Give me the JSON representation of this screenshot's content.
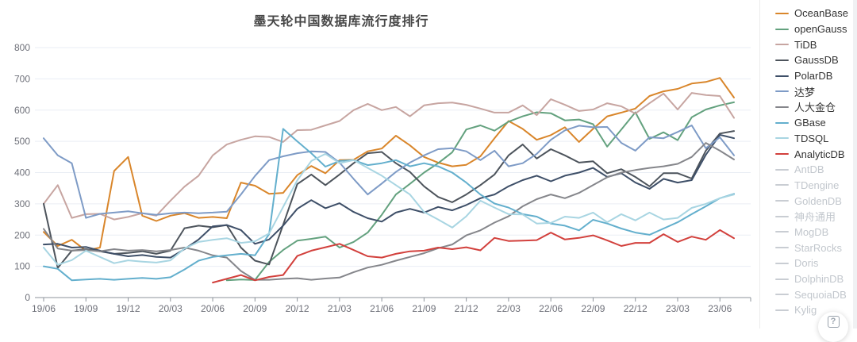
{
  "title": "墨天轮中国数据库流行度排行",
  "help_button": {
    "glyph": "?"
  },
  "colors": {
    "axis_label": "#6E7079",
    "axis_line": "#8d939b",
    "grid_line": "#e9edf4",
    "legend_active_text": "#333333",
    "legend_inactive": "#c9cdd3",
    "title_text": "#474747"
  },
  "chart_data": {
    "type": "line",
    "title": "墨天轮中国数据库流行度排行",
    "xlabel": "",
    "ylabel": "",
    "ylim": [
      0,
      800
    ],
    "y_ticks": [
      0,
      100,
      200,
      300,
      400,
      500,
      600,
      700,
      800
    ],
    "grid": true,
    "legend_position": "right",
    "x_tick_labels": [
      "19/06",
      "19/09",
      "19/12",
      "20/03",
      "20/06",
      "20/09",
      "20/12",
      "21/03",
      "21/06",
      "21/09",
      "21/12",
      "22/03",
      "22/06",
      "22/09",
      "22/12",
      "23/03",
      "23/06"
    ],
    "months": [
      "19/06",
      "19/07",
      "19/08",
      "19/09",
      "19/10",
      "19/11",
      "19/12",
      "20/01",
      "20/02",
      "20/03",
      "20/04",
      "20/05",
      "20/06",
      "20/07",
      "20/08",
      "20/09",
      "20/10",
      "20/11",
      "20/12",
      "21/01",
      "21/02",
      "21/03",
      "21/04",
      "21/05",
      "21/06",
      "21/07",
      "21/08",
      "21/09",
      "21/10",
      "21/11",
      "21/12",
      "22/01",
      "22/02",
      "22/03",
      "22/04",
      "22/05",
      "22/06",
      "22/07",
      "22/08",
      "22/09",
      "22/10",
      "22/11",
      "22/12",
      "23/01",
      "23/02",
      "23/03",
      "23/04",
      "23/05",
      "23/06",
      "23/07"
    ],
    "series": [
      {
        "name": "OceanBase",
        "color": "#d9862b",
        "active": true,
        "values": [
          210,
          165,
          185,
          150,
          160,
          405,
          450,
          262,
          245,
          262,
          270,
          255,
          258,
          254,
          368,
          358,
          332,
          335,
          392,
          421,
          398,
          440,
          441,
          468,
          477,
          518,
          487,
          450,
          432,
          420,
          425,
          452,
          510,
          565,
          540,
          505,
          520,
          545,
          498,
          540,
          580,
          592,
          605,
          645,
          660,
          668,
          685,
          690,
          703,
          640
        ]
      },
      {
        "name": "openGauss",
        "color": "#63a17e",
        "active": true,
        "values": [
          null,
          null,
          null,
          null,
          null,
          null,
          null,
          null,
          null,
          null,
          null,
          null,
          null,
          55,
          58,
          56,
          114,
          152,
          182,
          188,
          195,
          160,
          178,
          208,
          265,
          330,
          364,
          400,
          430,
          465,
          538,
          551,
          534,
          563,
          580,
          593,
          590,
          567,
          570,
          555,
          483,
          538,
          593,
          508,
          529,
          504,
          577,
          602,
          615,
          625
        ]
      },
      {
        "name": "TiDB",
        "color": "#c7a5a1",
        "active": true,
        "values": [
          300,
          360,
          255,
          267,
          268,
          250,
          258,
          270,
          262,
          310,
          355,
          390,
          455,
          490,
          505,
          516,
          514,
          498,
          536,
          537,
          551,
          565,
          600,
          620,
          600,
          610,
          580,
          615,
          622,
          624,
          617,
          605,
          592,
          592,
          615,
          584,
          635,
          617,
          597,
          602,
          622,
          612,
          589,
          622,
          653,
          602,
          655,
          648,
          645,
          575
        ]
      },
      {
        "name": "GaussDB",
        "color": "#4d545c",
        "active": true,
        "values": [
          300,
          95,
          150,
          155,
          148,
          140,
          143,
          148,
          140,
          150,
          222,
          230,
          225,
          232,
          160,
          118,
          106,
          233,
          363,
          394,
          360,
          394,
          430,
          462,
          466,
          430,
          402,
          356,
          322,
          305,
          330,
          360,
          394,
          455,
          490,
          445,
          475,
          455,
          432,
          436,
          398,
          411,
          386,
          356,
          398,
          398,
          381,
          470,
          525,
          533
        ]
      },
      {
        "name": "PolarDB",
        "color": "#3e4f68",
        "active": true,
        "values": [
          170,
          172,
          160,
          162,
          150,
          140,
          132,
          136,
          130,
          128,
          155,
          186,
          228,
          232,
          216,
          172,
          186,
          230,
          284,
          312,
          286,
          302,
          274,
          254,
          243,
          272,
          284,
          272,
          290,
          279,
          296,
          318,
          330,
          356,
          376,
          390,
          372,
          390,
          400,
          415,
          386,
          398,
          368,
          348,
          380,
          368,
          376,
          457,
          521,
          510
        ]
      },
      {
        "name": "达梦",
        "color": "#7e9bc6",
        "active": true,
        "values": [
          510,
          455,
          430,
          255,
          268,
          272,
          276,
          270,
          265,
          270,
          272,
          270,
          272,
          275,
          330,
          389,
          440,
          452,
          462,
          468,
          466,
          432,
          380,
          330,
          365,
          402,
          432,
          455,
          475,
          478,
          468,
          440,
          470,
          420,
          430,
          460,
          505,
          535,
          550,
          545,
          546,
          495,
          470,
          513,
          510,
          530,
          551,
          478,
          513,
          455
        ]
      },
      {
        "name": "人大金仓",
        "color": "#85868b",
        "active": true,
        "values": [
          220,
          157,
          150,
          152,
          148,
          155,
          150,
          152,
          148,
          152,
          160,
          150,
          135,
          128,
          85,
          57,
          57,
          60,
          62,
          57,
          61,
          64,
          81,
          96,
          105,
          118,
          130,
          142,
          158,
          170,
          199,
          215,
          240,
          260,
          292,
          315,
          330,
          318,
          335,
          360,
          385,
          400,
          408,
          415,
          420,
          428,
          450,
          495,
          470,
          442
        ]
      },
      {
        "name": "GBase",
        "color": "#63afcd",
        "active": true,
        "values": [
          100,
          92,
          55,
          58,
          60,
          57,
          60,
          63,
          60,
          65,
          90,
          118,
          130,
          135,
          140,
          135,
          203,
          540,
          500,
          462,
          419,
          437,
          440,
          424,
          430,
          440,
          420,
          430,
          420,
          400,
          368,
          330,
          301,
          288,
          267,
          259,
          237,
          230,
          215,
          249,
          237,
          221,
          208,
          201,
          221,
          241,
          267,
          292,
          318,
          332
        ]
      },
      {
        "name": "TDSQL",
        "color": "#a8d5e2",
        "active": true,
        "values": [
          160,
          105,
          120,
          150,
          130,
          110,
          119,
          115,
          112,
          119,
          157,
          178,
          185,
          190,
          175,
          180,
          205,
          290,
          375,
          437,
          460,
          430,
          440,
          415,
          390,
          360,
          330,
          274,
          250,
          224,
          260,
          310,
          288,
          267,
          266,
          237,
          239,
          259,
          255,
          272,
          241,
          267,
          247,
          272,
          250,
          255,
          287,
          300,
          318,
          330
        ]
      },
      {
        "name": "AnalyticDB",
        "color": "#d2403c",
        "active": true,
        "values": [
          null,
          null,
          null,
          null,
          null,
          null,
          null,
          null,
          null,
          null,
          null,
          null,
          48,
          60,
          72,
          55,
          66,
          72,
          133,
          150,
          161,
          172,
          152,
          132,
          128,
          140,
          148,
          150,
          160,
          155,
          161,
          151,
          191,
          181,
          182,
          184,
          208,
          186,
          191,
          199,
          183,
          165,
          175,
          175,
          203,
          178,
          195,
          185,
          216,
          190
        ]
      },
      {
        "name": "AntDB",
        "color": "#c9cdd3",
        "active": false,
        "values": null
      },
      {
        "name": "TDengine",
        "color": "#c9cdd3",
        "active": false,
        "values": null
      },
      {
        "name": "GoldenDB",
        "color": "#c9cdd3",
        "active": false,
        "values": null
      },
      {
        "name": "神舟通用",
        "color": "#c9cdd3",
        "active": false,
        "values": null
      },
      {
        "name": "MogDB",
        "color": "#c9cdd3",
        "active": false,
        "values": null
      },
      {
        "name": "StarRocks",
        "color": "#c9cdd3",
        "active": false,
        "values": null
      },
      {
        "name": "Doris",
        "color": "#c9cdd3",
        "active": false,
        "values": null
      },
      {
        "name": "DolphinDB",
        "color": "#c9cdd3",
        "active": false,
        "values": null
      },
      {
        "name": "SequoiaDB",
        "color": "#c9cdd3",
        "active": false,
        "values": null
      },
      {
        "name": "Kylig",
        "color": "#c9cdd3",
        "active": false,
        "values": null
      }
    ]
  }
}
